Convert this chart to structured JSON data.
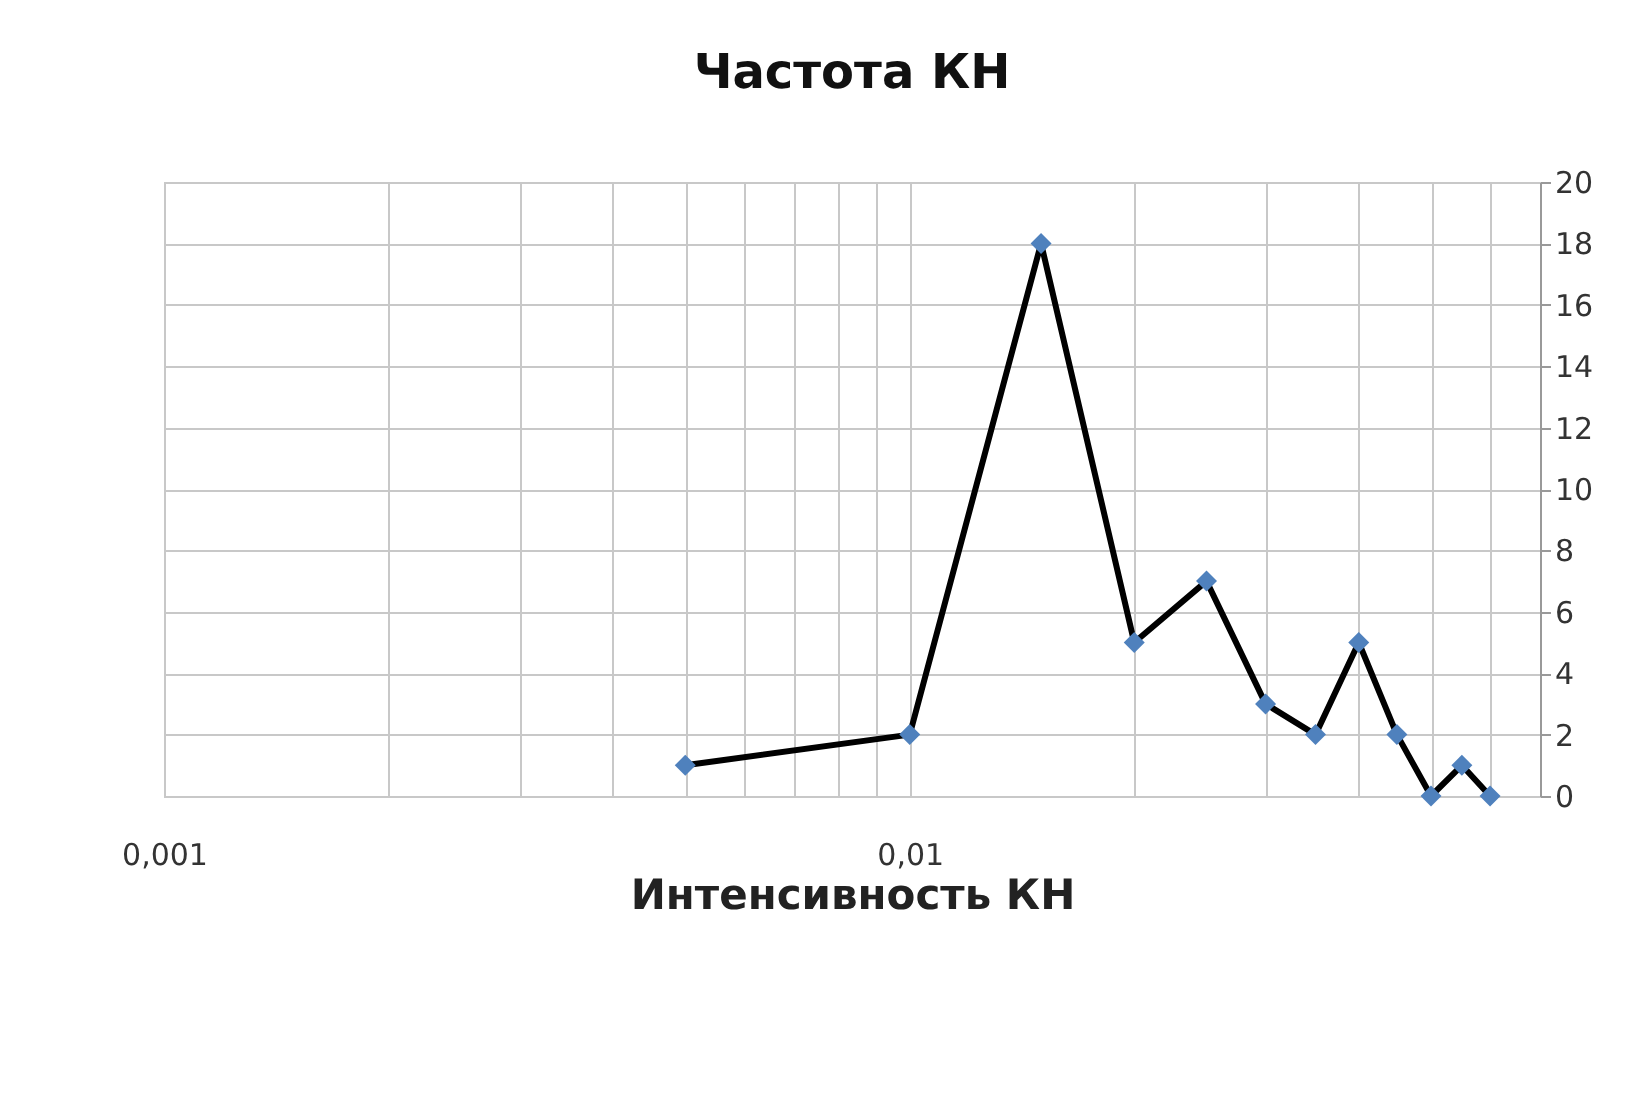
{
  "chart_data": {
    "type": "line",
    "title": "Частота КН",
    "xlabel": "Интенсивность КН",
    "x": [
      0.005,
      0.01,
      0.015,
      0.02,
      0.025,
      0.03,
      0.035,
      0.04,
      0.045,
      0.05,
      0.055,
      0.06
    ],
    "series": [
      {
        "color": "#000000",
        "colors": [
          "#4f81bd",
          "#4f81bd",
          "#4f81bd",
          "#4f81bd",
          "#4f81bd",
          "#4f81bd",
          "#4f81bd",
          "#4f81bd",
          "#4f81bd",
          "#4f81bd",
          "#4f81bd",
          "#4f81bd"
        ],
        "values": [
          1,
          2,
          18,
          5,
          7,
          3,
          2,
          5,
          2,
          0,
          1,
          0
        ]
      }
    ],
    "marker": "diamond",
    "line_style": "solid",
    "log": "x",
    "grid": true,
    "xlim": [
      0.001,
      0.07
    ],
    "xticks": [
      {
        "value": 0.001,
        "label": "0,001"
      },
      {
        "value": 0.002,
        "label": null
      },
      {
        "value": 0.003,
        "label": null
      },
      {
        "value": 0.004,
        "label": null
      },
      {
        "value": 0.005,
        "label": null
      },
      {
        "value": 0.006,
        "label": null
      },
      {
        "value": 0.007,
        "label": null
      },
      {
        "value": 0.008,
        "label": null
      },
      {
        "value": 0.009,
        "label": null
      },
      {
        "value": 0.01,
        "label": "0,01"
      },
      {
        "value": 0.02,
        "label": null
      },
      {
        "value": 0.03,
        "label": null
      },
      {
        "value": 0.04,
        "label": null
      },
      {
        "value": 0.05,
        "label": null
      },
      {
        "value": 0.06,
        "label": null
      },
      {
        "value": 0.07,
        "label": null
      }
    ],
    "ylim": [
      0,
      20
    ],
    "yticks": [
      0,
      2,
      4,
      6,
      8,
      10,
      12,
      14,
      16,
      18,
      20
    ]
  }
}
